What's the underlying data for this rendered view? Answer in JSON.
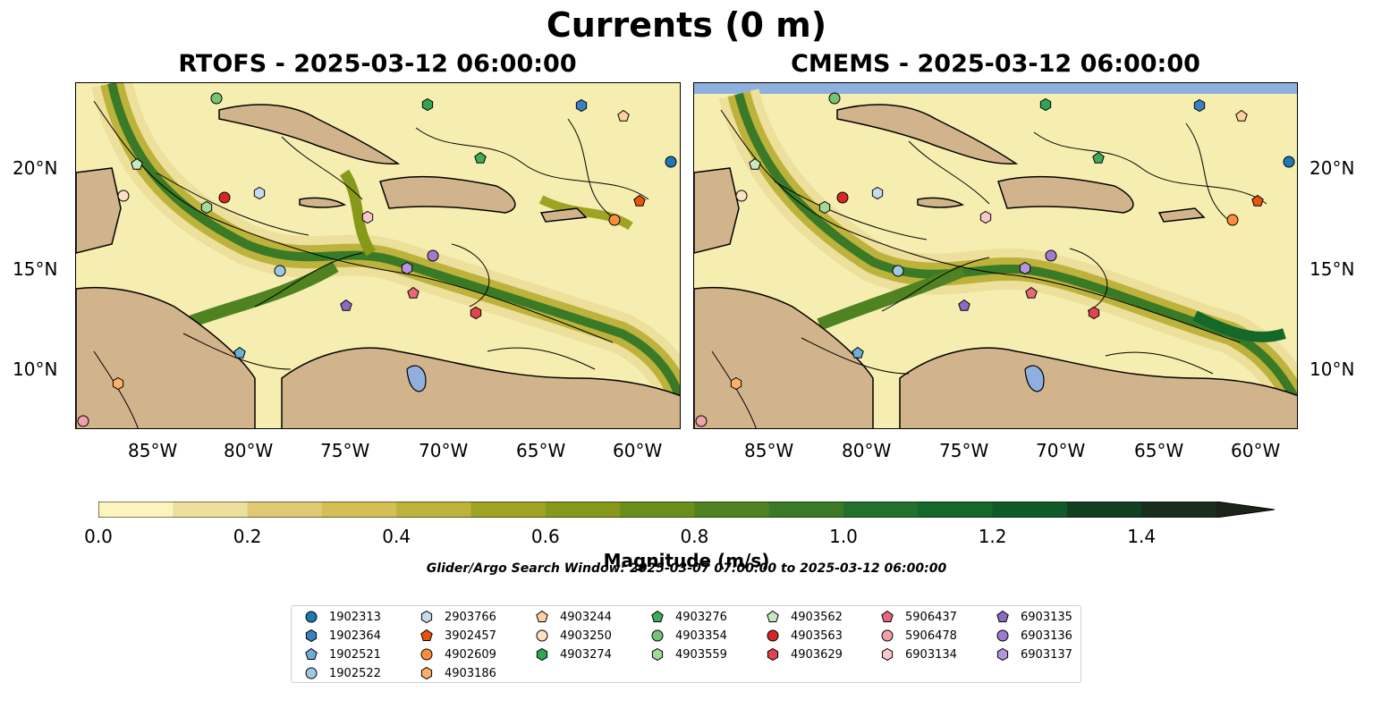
{
  "figure": {
    "title": "Currents (0 m)",
    "search_window": "Glider/Argo Search Window: 2025-03-07 07:00:00 to 2025-03-12 06:00:00"
  },
  "panels": [
    {
      "id": "rtofs",
      "title": "RTOFS - 2025-03-12 06:00:00"
    },
    {
      "id": "cmems",
      "title": "CMEMS - 2025-03-12 06:00:00"
    }
  ],
  "axes": {
    "lon_ticks": [
      "85°W",
      "80°W",
      "75°W",
      "70°W",
      "65°W",
      "60°W"
    ],
    "lat_ticks": [
      "20°N",
      "15°N",
      "10°N"
    ]
  },
  "colorbar": {
    "label": "Magnitude (m/s)",
    "tick_labels": [
      "0.0",
      "0.2",
      "0.4",
      "0.6",
      "0.8",
      "1.0",
      "1.2",
      "1.4"
    ],
    "extend": "max",
    "colors": [
      "#fbf5bd",
      "#eddf9c",
      "#dfc975",
      "#d5be56",
      "#bdb23b",
      "#9fa323",
      "#86991a",
      "#6b8f1a",
      "#4f8220",
      "#3a7a26",
      "#23702c",
      "#146829",
      "#0e5a28",
      "#123f22",
      "#1a2e1c",
      "#1c241a"
    ]
  },
  "map_colors": {
    "ocean": "#f6eeb0",
    "land": "#d2b48c",
    "lake": "#8fb0de",
    "river": "#9db8de",
    "stream": "#000000"
  },
  "legend": {
    "columns": [
      [
        {
          "id": "1902313",
          "shape": "circle",
          "color": "#1f77b4"
        },
        {
          "id": "1902364",
          "shape": "hexagon",
          "color": "#3a7fbf"
        },
        {
          "id": "1902521",
          "shape": "pentagon",
          "color": "#6baed6"
        },
        {
          "id": "1902522",
          "shape": "circle",
          "color": "#9ecae1"
        }
      ],
      [
        {
          "id": "2903766",
          "shape": "hexagon",
          "color": "#c6dbef"
        },
        {
          "id": "3902457",
          "shape": "pentagon",
          "color": "#e6550d"
        },
        {
          "id": "4902609",
          "shape": "circle",
          "color": "#fd8d3c"
        },
        {
          "id": "4903186",
          "shape": "hexagon",
          "color": "#fdae6b"
        }
      ],
      [
        {
          "id": "4903244",
          "shape": "pentagon",
          "color": "#fdd0a2"
        },
        {
          "id": "4903250",
          "shape": "circle",
          "color": "#fde0c4"
        },
        {
          "id": "4903274",
          "shape": "hexagon",
          "color": "#31a354"
        }
      ],
      [
        {
          "id": "4903276",
          "shape": "pentagon",
          "color": "#41ab5d"
        },
        {
          "id": "4903354",
          "shape": "circle",
          "color": "#74c476"
        },
        {
          "id": "4903559",
          "shape": "hexagon",
          "color": "#a1d99b"
        }
      ],
      [
        {
          "id": "4903562",
          "shape": "pentagon",
          "color": "#c7e9c0"
        },
        {
          "id": "4903563",
          "shape": "circle",
          "color": "#d62728"
        },
        {
          "id": "4903629",
          "shape": "hexagon",
          "color": "#e04450"
        }
      ],
      [
        {
          "id": "5906437",
          "shape": "pentagon",
          "color": "#e7697a"
        },
        {
          "id": "5906478",
          "shape": "circle",
          "color": "#f0a0a8"
        },
        {
          "id": "6903134",
          "shape": "hexagon",
          "color": "#f8c8cc"
        }
      ],
      [
        {
          "id": "6903135",
          "shape": "pentagon",
          "color": "#8c6bc4"
        },
        {
          "id": "6903136",
          "shape": "circle",
          "color": "#9e7bd0"
        },
        {
          "id": "6903137",
          "shape": "hexagon",
          "color": "#b694e0"
        }
      ]
    ]
  }
}
